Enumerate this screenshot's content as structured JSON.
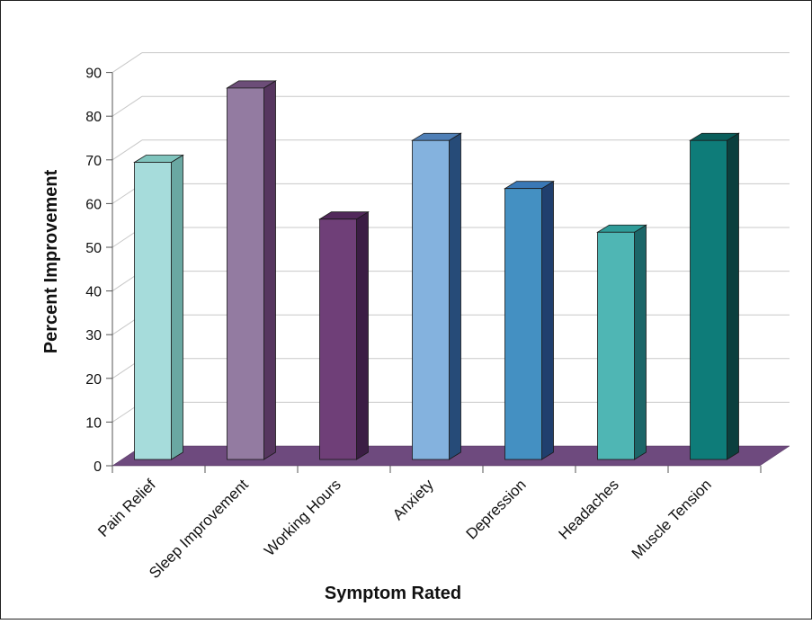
{
  "chart_data": {
    "type": "bar",
    "xlabel": "Symptom Rated",
    "ylabel": "Percent Improvement",
    "ylim": [
      0,
      90
    ],
    "yticks": [
      0,
      10,
      20,
      30,
      40,
      50,
      60,
      70,
      80,
      90
    ],
    "grid": true,
    "style": "3d-columns",
    "floor_color": "#6e4a7e",
    "categories": [
      "Pain Relief",
      "Sleep Improvement",
      "Working Hours",
      "Anxiety",
      "Depression",
      "Headaches",
      "Muscle Tension"
    ],
    "values": [
      68,
      85,
      55,
      73,
      62,
      52,
      73
    ],
    "colors": [
      {
        "front": "#a6dcdb",
        "side": "#6aa8a2",
        "top": "#7fc4bd"
      },
      {
        "front": "#937ba1",
        "side": "#56365f",
        "top": "#6c4d78"
      },
      {
        "front": "#6f3f78",
        "side": "#3b1d44",
        "top": "#52295b"
      },
      {
        "front": "#84b2de",
        "side": "#264b78",
        "top": "#4f7fb6"
      },
      {
        "front": "#4490c2",
        "side": "#203f6e",
        "top": "#3a78b6"
      },
      {
        "front": "#4fb6b4",
        "side": "#1c6668",
        "top": "#2f9c99"
      },
      {
        "front": "#0e7c79",
        "side": "#0b3f3e",
        "top": "#0a5f5c"
      }
    ]
  }
}
